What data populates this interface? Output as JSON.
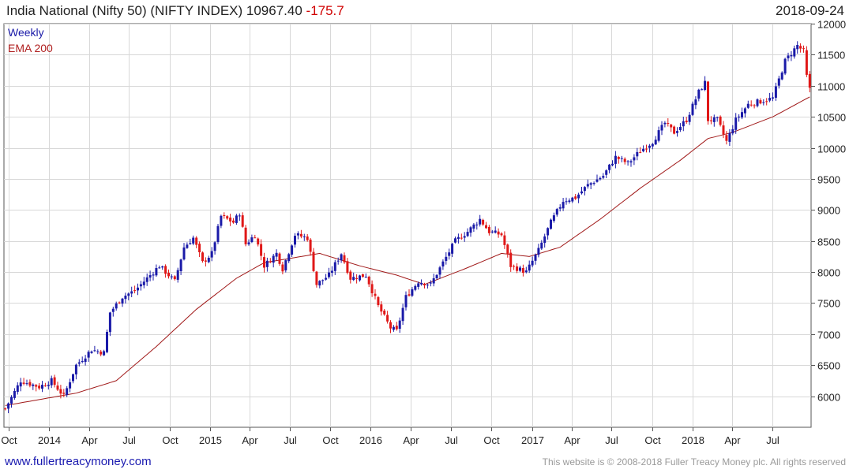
{
  "header": {
    "title": "India National (Nifty 50) (NIFTY INDEX) 10967.40",
    "change": "-175.7",
    "date": "2018-09-24"
  },
  "legend": {
    "weekly": "Weekly",
    "ema": "EMA 200"
  },
  "footer": {
    "left": "www.fullertreacymoney.com",
    "right": "This website is © 2008-2018 Fuller Treacy Money plc. All rights reserved"
  },
  "colors": {
    "up": "#1a1aa8",
    "down": "#e01818",
    "ema": "#a01818",
    "grid": "#d8d8d8"
  },
  "chart_data": {
    "type": "candlestick",
    "frequency": "weekly",
    "x_range": [
      "2013-09-23",
      "2018-09-24"
    ],
    "ylim": [
      5500,
      12000
    ],
    "y_ticks": [
      6000,
      6500,
      7000,
      7500,
      8000,
      8500,
      9000,
      9500,
      10000,
      10500,
      11000,
      11500,
      12000
    ],
    "x_ticks": [
      {
        "label": "Oct",
        "date": "2013-10-01"
      },
      {
        "label": "2014",
        "date": "2014-01-01"
      },
      {
        "label": "Apr",
        "date": "2014-04-01"
      },
      {
        "label": "Jul",
        "date": "2014-07-01"
      },
      {
        "label": "Oct",
        "date": "2014-10-01"
      },
      {
        "label": "2015",
        "date": "2015-01-01"
      },
      {
        "label": "Apr",
        "date": "2015-04-01"
      },
      {
        "label": "Jul",
        "date": "2015-07-01"
      },
      {
        "label": "Oct",
        "date": "2015-10-01"
      },
      {
        "label": "2016",
        "date": "2016-01-01"
      },
      {
        "label": "Apr",
        "date": "2016-04-01"
      },
      {
        "label": "Jul",
        "date": "2016-07-01"
      },
      {
        "label": "Oct",
        "date": "2016-10-01"
      },
      {
        "label": "2017",
        "date": "2017-01-01"
      },
      {
        "label": "Apr",
        "date": "2017-04-01"
      },
      {
        "label": "Jul",
        "date": "2017-07-01"
      },
      {
        "label": "Oct",
        "date": "2017-10-01"
      },
      {
        "label": "2018",
        "date": "2018-01-01"
      },
      {
        "label": "Apr",
        "date": "2018-04-01"
      },
      {
        "label": "Jul",
        "date": "2018-07-01"
      }
    ],
    "price_closes_anchor": [
      [
        "2013-09-23",
        5800
      ],
      [
        "2013-10-28",
        6250
      ],
      [
        "2013-12-09",
        6150
      ],
      [
        "2014-01-06",
        6250
      ],
      [
        "2014-02-03",
        6000
      ],
      [
        "2014-03-03",
        6500
      ],
      [
        "2014-04-07",
        6750
      ],
      [
        "2014-05-05",
        6700
      ],
      [
        "2014-05-19",
        7350
      ],
      [
        "2014-06-16",
        7600
      ],
      [
        "2014-07-14",
        7700
      ],
      [
        "2014-08-11",
        7900
      ],
      [
        "2014-09-08",
        8100
      ],
      [
        "2014-10-13",
        7850
      ],
      [
        "2014-11-03",
        8400
      ],
      [
        "2014-11-24",
        8550
      ],
      [
        "2014-12-15",
        8150
      ],
      [
        "2015-01-05",
        8300
      ],
      [
        "2015-01-26",
        8900
      ],
      [
        "2015-02-23",
        8800
      ],
      [
        "2015-03-09",
        8950
      ],
      [
        "2015-03-23",
        8450
      ],
      [
        "2015-04-13",
        8600
      ],
      [
        "2015-05-04",
        8100
      ],
      [
        "2015-06-01",
        8300
      ],
      [
        "2015-06-15",
        8050
      ],
      [
        "2015-07-13",
        8600
      ],
      [
        "2015-08-10",
        8550
      ],
      [
        "2015-08-31",
        7800
      ],
      [
        "2015-09-28",
        7950
      ],
      [
        "2015-10-26",
        8300
      ],
      [
        "2015-11-16",
        7900
      ],
      [
        "2015-12-21",
        7950
      ],
      [
        "2016-01-18",
        7450
      ],
      [
        "2016-02-15",
        7100
      ],
      [
        "2016-02-29",
        7050
      ],
      [
        "2016-03-21",
        7600
      ],
      [
        "2016-04-18",
        7850
      ],
      [
        "2016-05-16",
        7800
      ],
      [
        "2016-06-13",
        8150
      ],
      [
        "2016-07-11",
        8500
      ],
      [
        "2016-08-08",
        8650
      ],
      [
        "2016-09-05",
        8850
      ],
      [
        "2016-09-26",
        8650
      ],
      [
        "2016-10-24",
        8600
      ],
      [
        "2016-11-14",
        8100
      ],
      [
        "2016-12-19",
        8000
      ],
      [
        "2017-01-16",
        8350
      ],
      [
        "2017-02-13",
        8800
      ],
      [
        "2017-03-13",
        9150
      ],
      [
        "2017-04-10",
        9200
      ],
      [
        "2017-05-08",
        9400
      ],
      [
        "2017-06-12",
        9550
      ],
      [
        "2017-07-10",
        9850
      ],
      [
        "2017-08-07",
        9750
      ],
      [
        "2017-09-04",
        9950
      ],
      [
        "2017-10-02",
        10100
      ],
      [
        "2017-10-30",
        10400
      ],
      [
        "2017-11-20",
        10250
      ],
      [
        "2017-12-18",
        10450
      ],
      [
        "2018-01-15",
        10900
      ],
      [
        "2018-01-29",
        11050
      ],
      [
        "2018-02-05",
        10450
      ],
      [
        "2018-02-26",
        10450
      ],
      [
        "2018-03-19",
        10100
      ],
      [
        "2018-04-09",
        10450
      ],
      [
        "2018-05-07",
        10700
      ],
      [
        "2018-06-04",
        10750
      ],
      [
        "2018-07-02",
        10800
      ],
      [
        "2018-07-30",
        11400
      ],
      [
        "2018-08-27",
        11650
      ],
      [
        "2018-09-10",
        11550
      ],
      [
        "2018-09-17",
        11150
      ],
      [
        "2018-09-24",
        10967
      ]
    ],
    "ema_anchor": [
      [
        "2013-09-23",
        5850
      ],
      [
        "2014-03-03",
        6050
      ],
      [
        "2014-06-02",
        6250
      ],
      [
        "2014-09-01",
        6800
      ],
      [
        "2014-12-01",
        7400
      ],
      [
        "2015-03-02",
        7900
      ],
      [
        "2015-05-04",
        8150
      ],
      [
        "2015-09-07",
        8300
      ],
      [
        "2015-12-07",
        8100
      ],
      [
        "2016-02-29",
        7950
      ],
      [
        "2016-05-02",
        7800
      ],
      [
        "2016-08-01",
        8050
      ],
      [
        "2016-10-24",
        8300
      ],
      [
        "2016-12-26",
        8250
      ],
      [
        "2017-03-06",
        8400
      ],
      [
        "2017-06-05",
        8850
      ],
      [
        "2017-09-04",
        9350
      ],
      [
        "2017-12-04",
        9800
      ],
      [
        "2018-02-05",
        10150
      ],
      [
        "2018-04-02",
        10250
      ],
      [
        "2018-07-02",
        10500
      ],
      [
        "2018-09-24",
        10820
      ]
    ]
  }
}
